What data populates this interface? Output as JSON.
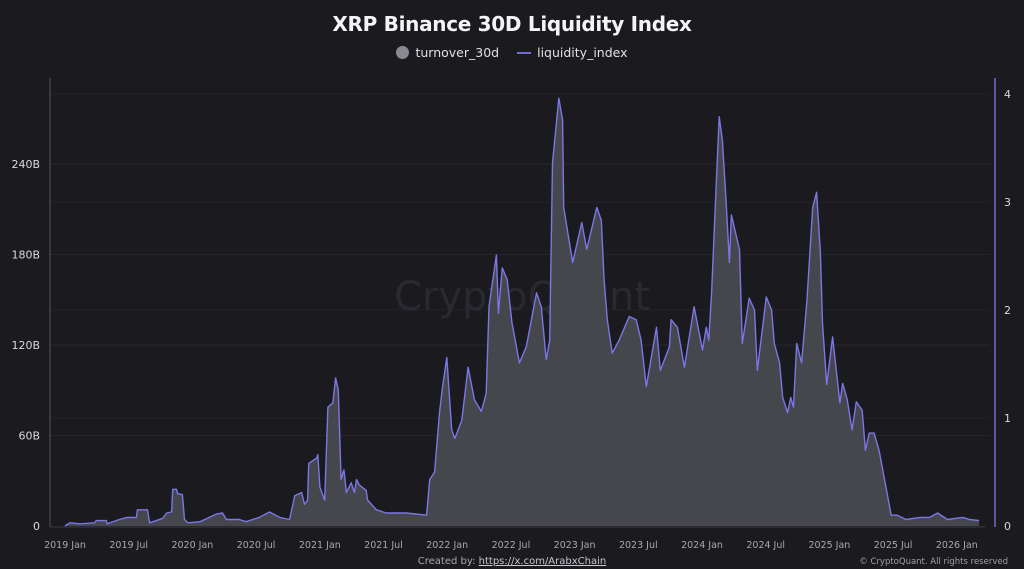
{
  "chart_data": {
    "type": "area",
    "title": "XRP Binance 30D Liquidity Index",
    "legend_position": "top-center",
    "grid": true,
    "watermark": "CryptoQuant",
    "x_ticks": [
      "2019 Jan",
      "2019 Jul",
      "2020 Jan",
      "2020 Jul",
      "2021 Jan",
      "2021 Jul",
      "2022 Jan",
      "2022 Jul",
      "2023 Jan",
      "2023 Jul",
      "2024 Jan",
      "2024 Jul",
      "2025 Jan",
      "2025 Jul",
      "2026 Jan"
    ],
    "y_left": {
      "ticks": [
        "0",
        "60B",
        "120B",
        "180B",
        "240B"
      ],
      "values": [
        0,
        60,
        120,
        180,
        240
      ],
      "unit": "B"
    },
    "y_right": {
      "ticks": [
        "0",
        "1",
        "2",
        "3",
        "4"
      ],
      "values": [
        0,
        1,
        2,
        3,
        4
      ]
    },
    "series": [
      {
        "name": "turnover_30d",
        "type": "area",
        "axis": "left",
        "color": "#46464d"
      },
      {
        "name": "liquidity_index",
        "type": "line",
        "axis": "right",
        "color": "#7a77e6"
      }
    ],
    "columns": [
      "date",
      "turnover_30d_B",
      "liquidity_index"
    ],
    "rows": [
      [
        "2019-01-15",
        0,
        0.0
      ],
      [
        "2019-01-29",
        2,
        0.03
      ],
      [
        "2019-02-27",
        1,
        0.02
      ],
      [
        "2019-04-10",
        2,
        0.03
      ],
      [
        "2019-04-15",
        4,
        0.05
      ],
      [
        "2019-05-14",
        4,
        0.05
      ],
      [
        "2019-05-16",
        1,
        0.02
      ],
      [
        "2019-06-20",
        4,
        0.06
      ],
      [
        "2019-07-12",
        6,
        0.08
      ],
      [
        "2019-08-08",
        6,
        0.08
      ],
      [
        "2019-08-11",
        11,
        0.15
      ],
      [
        "2019-09-09",
        11,
        0.15
      ],
      [
        "2019-09-15",
        2,
        0.03
      ],
      [
        "2019-10-22",
        5,
        0.07
      ],
      [
        "2019-11-03",
        9,
        0.12
      ],
      [
        "2019-11-17",
        9,
        0.13
      ],
      [
        "2019-11-20",
        24,
        0.34
      ],
      [
        "2019-12-01",
        24,
        0.34
      ],
      [
        "2019-12-04",
        21,
        0.3
      ],
      [
        "2019-12-18",
        21,
        0.29
      ],
      [
        "2019-12-24",
        4,
        0.06
      ],
      [
        "2020-01-03",
        2,
        0.03
      ],
      [
        "2020-02-06",
        3,
        0.04
      ],
      [
        "2020-03-24",
        8,
        0.11
      ],
      [
        "2020-04-11",
        9,
        0.12
      ],
      [
        "2020-04-22",
        4,
        0.06
      ],
      [
        "2020-05-29",
        4,
        0.06
      ],
      [
        "2020-06-18",
        3,
        0.04
      ],
      [
        "2020-07-25",
        6,
        0.08
      ],
      [
        "2020-08-24",
        9,
        0.13
      ],
      [
        "2020-09-22",
        6,
        0.08
      ],
      [
        "2020-10-20",
        4,
        0.06
      ],
      [
        "2020-10-29",
        14,
        0.19
      ],
      [
        "2020-11-04",
        20,
        0.28
      ],
      [
        "2020-11-24",
        22,
        0.31
      ],
      [
        "2020-12-02",
        14,
        0.2
      ],
      [
        "2020-12-11",
        17,
        0.24
      ],
      [
        "2020-12-14",
        42,
        0.58
      ],
      [
        "2021-01-06",
        45,
        0.63
      ],
      [
        "2021-01-09",
        47,
        0.66
      ],
      [
        "2021-01-15",
        26,
        0.36
      ],
      [
        "2021-01-29",
        17,
        0.24
      ],
      [
        "2021-02-07",
        79,
        1.1
      ],
      [
        "2021-02-21",
        82,
        1.14
      ],
      [
        "2021-03-01",
        98,
        1.37
      ],
      [
        "2021-03-09",
        90,
        1.26
      ],
      [
        "2021-03-17",
        31,
        0.43
      ],
      [
        "2021-03-25",
        37,
        0.52
      ],
      [
        "2021-04-01",
        22,
        0.31
      ],
      [
        "2021-04-15",
        29,
        0.4
      ],
      [
        "2021-04-24",
        22,
        0.31
      ],
      [
        "2021-04-30",
        31,
        0.43
      ],
      [
        "2021-05-08",
        27,
        0.38
      ],
      [
        "2021-05-28",
        24,
        0.33
      ],
      [
        "2021-06-01",
        17,
        0.24
      ],
      [
        "2021-06-26",
        11,
        0.15
      ],
      [
        "2021-07-24",
        9,
        0.12
      ],
      [
        "2021-08-22",
        9,
        0.12
      ],
      [
        "2021-09-20",
        9,
        0.12
      ],
      [
        "2021-11-17",
        7,
        0.1
      ],
      [
        "2021-11-26",
        31,
        0.43
      ],
      [
        "2021-12-10",
        36,
        0.5
      ],
      [
        "2021-12-24",
        75,
        1.05
      ],
      [
        "2022-01-02",
        92,
        1.29
      ],
      [
        "2022-01-14",
        112,
        1.56
      ],
      [
        "2022-01-28",
        64,
        0.89
      ],
      [
        "2022-02-06",
        58,
        0.81
      ],
      [
        "2022-02-26",
        70,
        0.98
      ],
      [
        "2022-03-16",
        105,
        1.47
      ],
      [
        "2022-04-03",
        84,
        1.17
      ],
      [
        "2022-04-23",
        76,
        1.06
      ],
      [
        "2022-05-07",
        88,
        1.23
      ],
      [
        "2022-05-15",
        145,
        2.03
      ],
      [
        "2022-06-05",
        180,
        2.51
      ],
      [
        "2022-06-11",
        141,
        1.97
      ],
      [
        "2022-06-22",
        171,
        2.39
      ],
      [
        "2022-07-06",
        163,
        2.28
      ],
      [
        "2022-07-20",
        135,
        1.88
      ],
      [
        "2022-08-10",
        108,
        1.51
      ],
      [
        "2022-08-30",
        119,
        1.66
      ],
      [
        "2022-09-28",
        155,
        2.16
      ],
      [
        "2022-10-12",
        145,
        2.03
      ],
      [
        "2022-10-26",
        110,
        1.54
      ],
      [
        "2022-11-05",
        123,
        1.72
      ],
      [
        "2022-11-13",
        241,
        3.36
      ],
      [
        "2022-12-01",
        284,
        3.96
      ],
      [
        "2022-12-12",
        269,
        3.76
      ],
      [
        "2022-12-15",
        211,
        2.95
      ],
      [
        "2023-01-10",
        175,
        2.44
      ],
      [
        "2023-02-05",
        201,
        2.81
      ],
      [
        "2023-02-19",
        183,
        2.56
      ],
      [
        "2023-03-20",
        211,
        2.95
      ],
      [
        "2023-04-02",
        203,
        2.83
      ],
      [
        "2023-04-10",
        163,
        2.28
      ],
      [
        "2023-04-19",
        137,
        1.91
      ],
      [
        "2023-05-03",
        115,
        1.6
      ],
      [
        "2023-05-23",
        123,
        1.72
      ],
      [
        "2023-06-21",
        139,
        1.94
      ],
      [
        "2023-07-11",
        137,
        1.91
      ],
      [
        "2023-07-25",
        123,
        1.72
      ],
      [
        "2023-08-09",
        92,
        1.29
      ],
      [
        "2023-09-07",
        132,
        1.84
      ],
      [
        "2023-09-18",
        103,
        1.44
      ],
      [
        "2023-10-14",
        119,
        1.66
      ],
      [
        "2023-10-19",
        137,
        1.91
      ],
      [
        "2023-11-06",
        132,
        1.84
      ],
      [
        "2023-11-26",
        105,
        1.47
      ],
      [
        "2023-12-24",
        145,
        2.03
      ],
      [
        "2024-01-17",
        117,
        1.63
      ],
      [
        "2024-01-28",
        132,
        1.84
      ],
      [
        "2024-02-04",
        123,
        1.72
      ],
      [
        "2024-02-12",
        155,
        2.16
      ],
      [
        "2024-02-26",
        229,
        3.2
      ],
      [
        "2024-03-05",
        271,
        3.79
      ],
      [
        "2024-03-14",
        256,
        3.57
      ],
      [
        "2024-03-25",
        214,
        2.99
      ],
      [
        "2024-04-03",
        175,
        2.44
      ],
      [
        "2024-04-09",
        206,
        2.88
      ],
      [
        "2024-05-02",
        183,
        2.56
      ],
      [
        "2024-05-10",
        121,
        1.69
      ],
      [
        "2024-05-30",
        151,
        2.11
      ],
      [
        "2024-06-14",
        143,
        2.0
      ],
      [
        "2024-06-22",
        103,
        1.44
      ],
      [
        "2024-07-18",
        152,
        2.12
      ],
      [
        "2024-08-02",
        143,
        2.0
      ],
      [
        "2024-08-10",
        121,
        1.69
      ],
      [
        "2024-08-25",
        108,
        1.51
      ],
      [
        "2024-09-03",
        85,
        1.19
      ],
      [
        "2024-09-17",
        75,
        1.05
      ],
      [
        "2024-09-26",
        85,
        1.19
      ],
      [
        "2024-10-04",
        79,
        1.1
      ],
      [
        "2024-10-13",
        121,
        1.69
      ],
      [
        "2024-10-27",
        108,
        1.51
      ],
      [
        "2024-11-11",
        148,
        2.07
      ],
      [
        "2024-11-28",
        211,
        2.95
      ],
      [
        "2024-12-09",
        221,
        3.09
      ],
      [
        "2024-12-20",
        181,
        2.53
      ],
      [
        "2024-12-26",
        135,
        1.88
      ],
      [
        "2025-01-07",
        94,
        1.31
      ],
      [
        "2025-01-24",
        125,
        1.75
      ],
      [
        "2025-02-14",
        82,
        1.14
      ],
      [
        "2025-02-22",
        95,
        1.32
      ],
      [
        "2025-03-07",
        84,
        1.17
      ],
      [
        "2025-03-21",
        64,
        0.89
      ],
      [
        "2025-04-02",
        82,
        1.15
      ],
      [
        "2025-04-19",
        77,
        1.07
      ],
      [
        "2025-04-28",
        50,
        0.7
      ],
      [
        "2025-05-09",
        62,
        0.86
      ],
      [
        "2025-05-23",
        62,
        0.86
      ],
      [
        "2025-06-07",
        49,
        0.69
      ],
      [
        "2025-07-11",
        7,
        0.1
      ],
      [
        "2025-07-28",
        7,
        0.1
      ],
      [
        "2025-08-23",
        4,
        0.06
      ],
      [
        "2025-10-01",
        6,
        0.08
      ],
      [
        "2025-10-29",
        6,
        0.08
      ],
      [
        "2025-11-21",
        9,
        0.12
      ],
      [
        "2025-12-19",
        4,
        0.06
      ],
      [
        "2026-02-02",
        6,
        0.08
      ],
      [
        "2026-02-21",
        4,
        0.06
      ],
      [
        "2026-03-20",
        4,
        0.05
      ]
    ]
  },
  "legend": {
    "turnover": "turnover_30d",
    "liquidity": "liquidity_index"
  },
  "footer": {
    "created_by_label": "Created by:",
    "created_by_link": "https://x.com/ArabxChain",
    "copyright": "© CryptoQuant. All rights reserved"
  }
}
